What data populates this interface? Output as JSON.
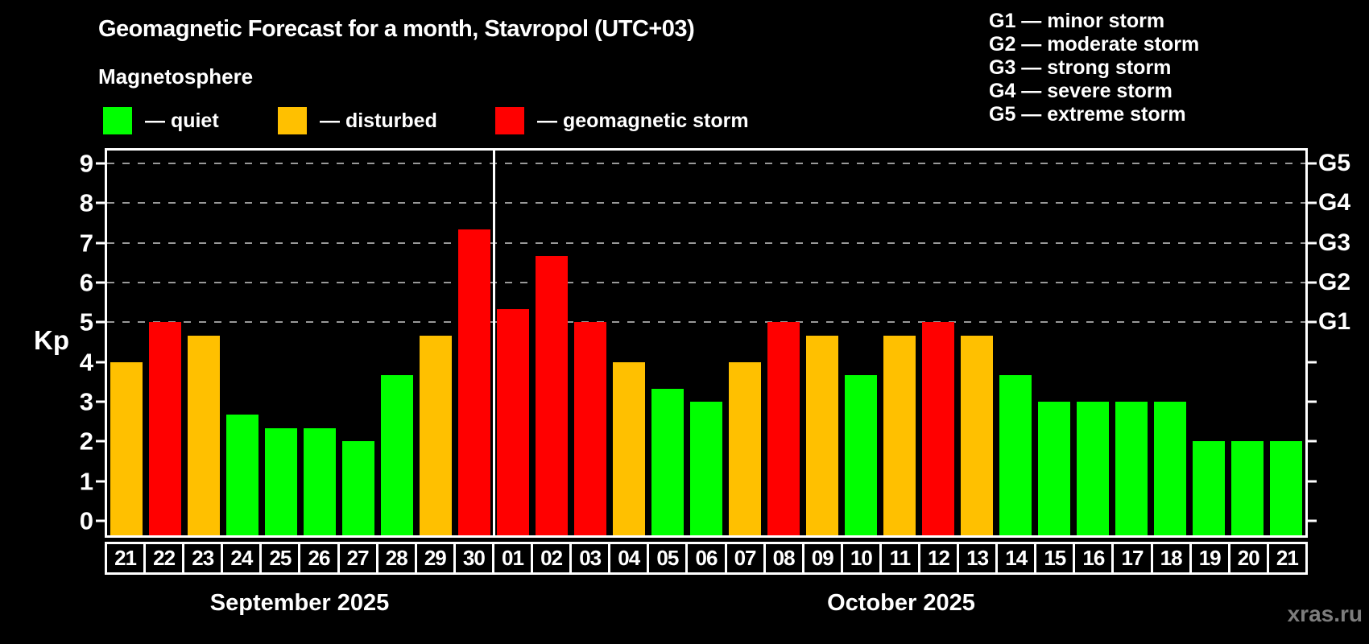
{
  "title": "Geomagnetic Forecast for a month, Stavropol (UTC+03)",
  "subtitle": "Magnetosphere",
  "legend": {
    "quiet": "— quiet",
    "disturbed": "— disturbed",
    "storm": "— geomagnetic storm"
  },
  "g_legend": [
    "G1 — minor storm",
    "G2 — moderate storm",
    "G3 — strong storm",
    "G4 — severe storm",
    "G5 — extreme storm"
  ],
  "axis": {
    "ylabel": "Kp",
    "yticks": [
      0,
      1,
      2,
      3,
      4,
      5,
      6,
      7,
      8,
      9
    ],
    "g_levels": [
      {
        "label": "G1",
        "kp": 5
      },
      {
        "label": "G2",
        "kp": 6
      },
      {
        "label": "G3",
        "kp": 7
      },
      {
        "label": "G4",
        "kp": 8
      },
      {
        "label": "G5",
        "kp": 9
      }
    ]
  },
  "months": [
    "September 2025",
    "October 2025"
  ],
  "watermark": "xras.ru",
  "colors": {
    "background": "#000000",
    "quiet": "#00ff00",
    "disturbed": "#ffc000",
    "storm": "#ff0000",
    "grid": "#999999",
    "frame": "#ffffff",
    "watermark": "#7d7d7d"
  },
  "chart_data": {
    "type": "bar",
    "title": "Geomagnetic Forecast for a month, Stavropol (UTC+03)",
    "xlabel": "",
    "ylabel": "Kp",
    "ylim": [
      0,
      9
    ],
    "gridlines_kp": [
      5,
      6,
      7,
      8,
      9
    ],
    "legend_position": "top",
    "month_split_index": 10,
    "months": [
      {
        "label": "September 2025",
        "days": 10
      },
      {
        "label": "October 2025",
        "days": 21
      }
    ],
    "categories": [
      "21",
      "22",
      "23",
      "24",
      "25",
      "26",
      "27",
      "28",
      "29",
      "30",
      "01",
      "02",
      "03",
      "04",
      "05",
      "06",
      "07",
      "08",
      "09",
      "10",
      "11",
      "12",
      "13",
      "14",
      "15",
      "16",
      "17",
      "18",
      "19",
      "20",
      "21"
    ],
    "values": [
      4.0,
      5.0,
      4.67,
      2.67,
      2.33,
      2.33,
      2.0,
      3.67,
      4.67,
      7.33,
      5.33,
      6.67,
      5.0,
      4.0,
      3.33,
      3.0,
      4.0,
      5.0,
      4.67,
      3.67,
      4.67,
      5.0,
      4.67,
      3.67,
      3.0,
      3.0,
      3.0,
      3.0,
      2.0,
      2.0,
      2.0
    ],
    "statuses": [
      "disturbed",
      "storm",
      "disturbed",
      "quiet",
      "quiet",
      "quiet",
      "quiet",
      "quiet",
      "disturbed",
      "storm",
      "storm",
      "storm",
      "storm",
      "disturbed",
      "quiet",
      "quiet",
      "disturbed",
      "storm",
      "disturbed",
      "quiet",
      "disturbed",
      "storm",
      "disturbed",
      "quiet",
      "quiet",
      "quiet",
      "quiet",
      "quiet",
      "quiet",
      "quiet",
      "quiet"
    ]
  }
}
